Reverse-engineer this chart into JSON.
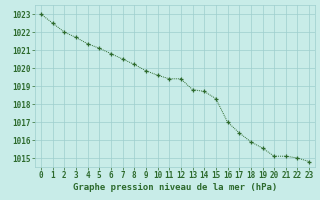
{
  "x": [
    0,
    1,
    2,
    3,
    4,
    5,
    6,
    7,
    8,
    9,
    10,
    11,
    12,
    13,
    14,
    15,
    16,
    17,
    18,
    19,
    20,
    21,
    22,
    23
  ],
  "y": [
    1023.0,
    1022.5,
    1022.0,
    1021.7,
    1021.35,
    1021.1,
    1020.8,
    1020.5,
    1020.2,
    1019.85,
    1019.6,
    1019.4,
    1019.4,
    1018.8,
    1018.7,
    1018.3,
    1017.0,
    1016.4,
    1015.9,
    1015.55,
    1015.1,
    1015.1,
    1015.0,
    1014.8
  ],
  "line_color": "#2d6a2d",
  "marker_color": "#2d6a2d",
  "bg_color": "#c8ece8",
  "grid_color": "#9ecece",
  "tick_color": "#2d6a2d",
  "title": "Graphe pression niveau de la mer (hPa)",
  "ylim_min": 1014.5,
  "ylim_max": 1023.5,
  "yticks": [
    1015,
    1016,
    1017,
    1018,
    1019,
    1020,
    1021,
    1022,
    1023
  ],
  "xticks": [
    0,
    1,
    2,
    3,
    4,
    5,
    6,
    7,
    8,
    9,
    10,
    11,
    12,
    13,
    14,
    15,
    16,
    17,
    18,
    19,
    20,
    21,
    22,
    23
  ],
  "title_fontsize": 6.5,
  "tick_fontsize": 5.5
}
